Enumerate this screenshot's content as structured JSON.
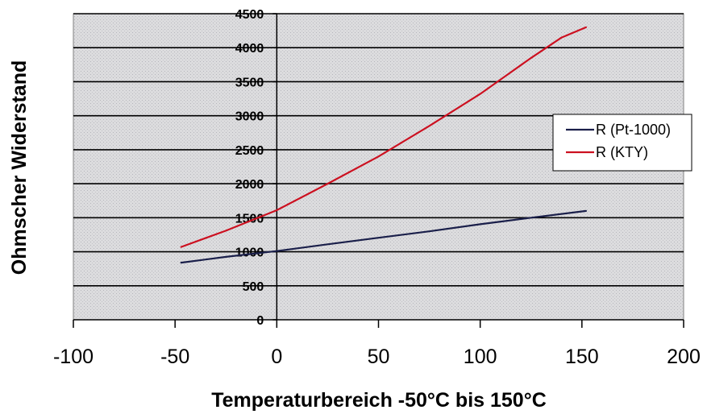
{
  "chart_data": {
    "type": "line",
    "title": "",
    "xlabel": "Temperaturbereich -50°C bis 150°C",
    "ylabel": "Ohmscher Widerstand",
    "xlim": [
      -100,
      200
    ],
    "ylim": [
      0,
      4500
    ],
    "xticks": [
      "-100",
      "-50",
      "0",
      "50",
      "100",
      "150",
      "200"
    ],
    "yticks": [
      "0",
      "500",
      "1000",
      "1500",
      "2000",
      "2500",
      "3000",
      "3500",
      "4000",
      "4500"
    ],
    "grid": "horizontal",
    "legend": "right",
    "series": [
      {
        "name": "R (Pt-1000)",
        "color": "#1a1f4a",
        "x": [
          -47,
          -25,
          0,
          25,
          50,
          75,
          100,
          125,
          152
        ],
        "y": [
          840,
          925,
          1010,
          1110,
          1205,
          1300,
          1405,
          1500,
          1600
        ]
      },
      {
        "name": "R (KTY)",
        "color": "#cc1020",
        "x": [
          -47,
          -25,
          0,
          25,
          50,
          75,
          100,
          125,
          140,
          152
        ],
        "y": [
          1070,
          1310,
          1610,
          2000,
          2400,
          2850,
          3320,
          3850,
          4150,
          4300
        ]
      }
    ]
  }
}
